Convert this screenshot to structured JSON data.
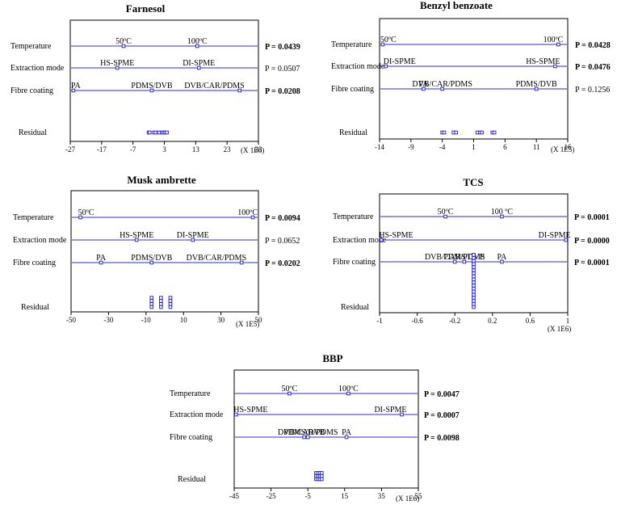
{
  "chart_data": [
    {
      "type": "scatter",
      "title": "Farnesol",
      "scale_label": "(X 1E6)",
      "xlim": [
        -27,
        33
      ],
      "xticks": [
        -27,
        -17,
        -7,
        3,
        13,
        23,
        33
      ],
      "xtick_labels": [
        "-27",
        "-17",
        "-7",
        "3",
        "13",
        "23",
        "33"
      ],
      "factors": [
        {
          "name": "Temperature",
          "p_value": "P = 0.0439",
          "significant": true,
          "levels": [
            {
              "label": "50ºC",
              "x": -10
            },
            {
              "label": "100ºC",
              "x": 13.5
            }
          ]
        },
        {
          "name": "Extraction mode",
          "p_value": "P = 0.0507",
          "significant": false,
          "levels": [
            {
              "label": "HS-SPME",
              "x": -12
            },
            {
              "label": "DI-SPME",
              "x": 14
            }
          ]
        },
        {
          "name": "Fibre coating",
          "p_value": "P = 0.0208",
          "significant": true,
          "levels": [
            {
              "label": "PA",
              "x": -26
            },
            {
              "label": "PDMS/DVB",
              "x": -1
            },
            {
              "label": "DVB/CAR/PDMS",
              "x": 27
            }
          ]
        }
      ],
      "residual": {
        "name": "Residual",
        "x": [
          -2,
          -1.7,
          -0.3,
          0.2,
          1.3,
          2.3,
          2.8,
          3.3,
          3.8
        ],
        "y": [
          0,
          0,
          0,
          0,
          0,
          0,
          0,
          0,
          0
        ]
      }
    },
    {
      "type": "scatter",
      "title": "Benzyl benzoate",
      "scale_label": "(X 1E5)",
      "xlim": [
        -14,
        16
      ],
      "xticks": [
        -14,
        -9,
        -4,
        1,
        6,
        11,
        16
      ],
      "xtick_labels": [
        "-14",
        "-9",
        "-4",
        "1",
        "6",
        "11",
        "16"
      ],
      "factors": [
        {
          "name": "Temperature",
          "p_value": "P = 0.0428",
          "significant": true,
          "levels": [
            {
              "label": "50ºC",
              "x": -13.5
            },
            {
              "label": "100ºC",
              "x": 14.5
            }
          ]
        },
        {
          "name": "Extraction mode",
          "p_value": "P = 0.0476",
          "significant": true,
          "levels": [
            {
              "label": "DI-SPME",
              "x": -13
            },
            {
              "label": "HS-SPME",
              "x": 14
            }
          ]
        },
        {
          "name": "Fibre coating",
          "p_value": "P = 0.1256",
          "significant": false,
          "levels": [
            {
              "label": "PA",
              "x": -7
            },
            {
              "label": "DVB/CAR/PDMS",
              "x": -4
            },
            {
              "label": "PDMS/DVB",
              "x": 11
            }
          ]
        }
      ],
      "residual": {
        "name": "Residual",
        "x": [
          -4,
          -3.7,
          -2.2,
          -1.8,
          1.6,
          2,
          2.3,
          4,
          4.3
        ],
        "y": [
          0,
          0,
          0,
          0,
          0,
          0,
          0,
          0,
          0
        ]
      }
    },
    {
      "type": "scatter",
      "title": "Musk ambrette",
      "scale_label": "(X 1E5)",
      "xlim": [
        -50,
        50
      ],
      "xticks": [
        -50,
        -30,
        -10,
        10,
        30,
        50
      ],
      "xtick_labels": [
        "-50",
        "-30",
        "-10",
        "10",
        "30",
        "50"
      ],
      "factors": [
        {
          "name": "Temperature",
          "p_value": "P = 0.0094",
          "significant": true,
          "levels": [
            {
              "label": "50ºC",
              "x": -45
            },
            {
              "label": "100ºC",
              "x": 47
            }
          ]
        },
        {
          "name": "Extraction mode",
          "p_value": "P = 0.0652",
          "significant": false,
          "levels": [
            {
              "label": "HS-SPME",
              "x": -15
            },
            {
              "label": "DI-SPME",
              "x": 15
            }
          ]
        },
        {
          "name": "Fibre coating",
          "p_value": "P = 0.0202",
          "significant": true,
          "levels": [
            {
              "label": "PA",
              "x": -34
            },
            {
              "label": "PDMS/DVB",
              "x": -7
            },
            {
              "label": "DVB/CAR/PDMS",
              "x": 41
            }
          ]
        }
      ],
      "residual": {
        "name": "Residual",
        "x": [
          -7,
          -7,
          -7,
          -7,
          -2,
          -2,
          -2,
          -2,
          3,
          3,
          3,
          3
        ],
        "y": [
          0,
          1,
          2,
          3,
          0,
          1,
          2,
          3,
          0,
          1,
          2,
          3
        ]
      }
    },
    {
      "type": "scatter",
      "title": "TCS",
      "scale_label": "(X 1E6)",
      "xlim": [
        -1,
        1
      ],
      "xticks": [
        -1,
        -0.6,
        -0.2,
        0.2,
        0.6,
        1
      ],
      "xtick_labels": [
        "-1",
        "-0.6",
        "-0.2",
        "0.2",
        "0.6",
        "1"
      ],
      "factors": [
        {
          "name": "Temperature",
          "p_value": "P = 0.0001",
          "significant": true,
          "levels": [
            {
              "label": "50ºC",
              "x": -0.3
            },
            {
              "label": "100 ºC",
              "x": 0.3
            }
          ]
        },
        {
          "name": "Extraction mode",
          "p_value": "P = 0.0000",
          "significant": true,
          "levels": [
            {
              "label": "HS-SPME",
              "x": -0.98
            },
            {
              "label": "DI-SPME",
              "x": 0.98
            }
          ]
        },
        {
          "name": "Fibre coating",
          "p_value": "P = 0.0001",
          "significant": true,
          "levels": [
            {
              "label": "DVB/CAR/PDMS",
              "x": -0.2
            },
            {
              "label": "PDMS/DVB",
              "x": -0.1
            },
            {
              "label": "PA",
              "x": 0.3
            }
          ]
        }
      ],
      "residual": {
        "name": "Residual",
        "x": [
          0,
          0,
          0,
          0,
          0,
          0,
          0,
          0,
          0,
          0,
          0,
          0,
          0,
          0,
          0,
          0,
          0,
          0
        ],
        "y": [
          0,
          1,
          2,
          3,
          4,
          5,
          6,
          7,
          8,
          9,
          10,
          11,
          12,
          13,
          14,
          15,
          16,
          17
        ]
      }
    },
    {
      "type": "scatter",
      "title": "BBP",
      "scale_label": "(X 1E6)",
      "xlim": [
        -45,
        55
      ],
      "xticks": [
        -45,
        -25,
        -5,
        15,
        35,
        55
      ],
      "xtick_labels": [
        "-45",
        "-25",
        "-5",
        "15",
        "35",
        "55"
      ],
      "factors": [
        {
          "name": "Temperature",
          "p_value": "P = 0.0047",
          "significant": true,
          "levels": [
            {
              "label": "50ºC",
              "x": -15
            },
            {
              "label": "100ºC",
              "x": 17
            }
          ]
        },
        {
          "name": "Extraction mode",
          "p_value": "P = 0.0007",
          "significant": true,
          "levels": [
            {
              "label": "HS-SPME",
              "x": -44
            },
            {
              "label": "DI-SPME",
              "x": 46
            }
          ]
        },
        {
          "name": "Fibre coating",
          "p_value": "P = 0.0098",
          "significant": true,
          "levels": [
            {
              "label": "PDMS/DVB",
              "x": -7
            },
            {
              "label": "DVB/CAR/PDMS",
              "x": -5
            },
            {
              "label": "PA",
              "x": 16
            }
          ]
        }
      ],
      "residual": {
        "name": "Residual",
        "x": [
          -0.5,
          0.5,
          1.5,
          2.5,
          -0.5,
          0.5,
          1.5,
          2.5,
          -0.5,
          0.5,
          1.5,
          2.5
        ],
        "y": [
          0,
          0,
          0,
          0,
          1,
          1,
          1,
          1,
          2,
          2,
          2,
          2
        ]
      }
    }
  ],
  "colors": {
    "line": "#2b2bd8",
    "marker": "#2b2bd8",
    "frame": "#000000"
  }
}
